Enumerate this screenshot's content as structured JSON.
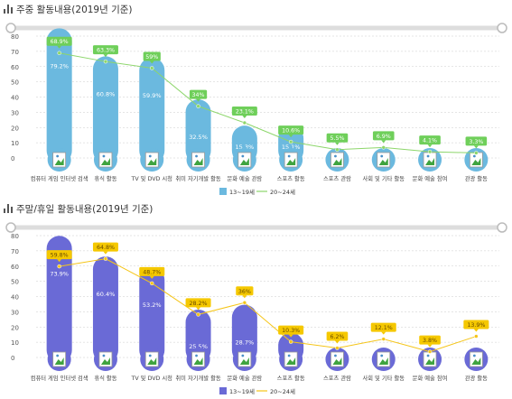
{
  "icons": {
    "title": "bar-chart-icon",
    "category": "broken-image-icon"
  },
  "colors": {
    "line": "#999999",
    "slider": "#dddddd",
    "grid": "#cccccc",
    "axisText": "#555555"
  },
  "chart_data": [
    {
      "type": "bar",
      "title": "주중 활동내용(2019년 기준)",
      "categories": [
        "컴퓨터 게임 인터넷 검색",
        "휴식 활동",
        "TV 및 DVD 시청",
        "취미 자기개발 활동",
        "문화 예술 관람",
        "스포츠 활동",
        "스포츠 관람",
        "사회 및 기타 활동",
        "문화 예술 참여",
        "관광 활동"
      ],
      "ylim": [
        0,
        80
      ],
      "yticks": [
        0,
        10,
        20,
        30,
        40,
        50,
        60,
        70,
        80
      ],
      "grid": true,
      "legend": "bottom",
      "series": [
        {
          "name": "13~19세",
          "type": "bar",
          "color": "#6bb9df",
          "labelColor": "#ffffff",
          "values": [
            79.2,
            60.8,
            59.9,
            32.5,
            15.3,
            15.1,
            0,
            0,
            0,
            0
          ],
          "labels": [
            "79.2%",
            "60.8%",
            "59.9%",
            "32.5%",
            "15.3%",
            "15.1%",
            "",
            "",
            "",
            ""
          ]
        },
        {
          "name": "20~24세",
          "type": "line",
          "color": "#8dd66b",
          "boxColor": "#6fcf5a",
          "labelColor": "#ffffff",
          "values": [
            68.9,
            63.3,
            59,
            34,
            23.1,
            10.6,
            5.5,
            6.9,
            4.1,
            3.3
          ],
          "labels": [
            "68.9%",
            "63.3%",
            "59%",
            "34%",
            "23.1%",
            "10.6%",
            "5.5%",
            "6.9%",
            "4.1%",
            "3.3%"
          ]
        }
      ]
    },
    {
      "type": "bar",
      "title": "주말/휴일 활동내용(2019년 기준)",
      "categories": [
        "컴퓨터 게임 인터넷 검색",
        "휴식 활동",
        "TV 및 DVD 시청",
        "취미 자기개발 활동",
        "문화 예술 관람",
        "스포츠 활동",
        "스포츠 관람",
        "사회 및 기타 활동",
        "문화 예술 참여",
        "관광 활동"
      ],
      "ylim": [
        0,
        80
      ],
      "yticks": [
        0,
        10,
        20,
        30,
        40,
        50,
        60,
        70,
        80
      ],
      "grid": true,
      "legend": "bottom",
      "series": [
        {
          "name": "13~19세",
          "type": "bar",
          "color": "#6a6ad6",
          "labelColor": "#ffffff",
          "values": [
            73.9,
            60.4,
            53.2,
            25.5,
            28.7,
            10.3,
            0,
            0,
            0,
            0
          ],
          "labels": [
            "73.9%",
            "60.4%",
            "53.2%",
            "25.5%",
            "28.7%",
            "",
            "",
            "",
            "",
            ""
          ]
        },
        {
          "name": "20~24세",
          "type": "line",
          "color": "#f5c518",
          "boxColor": "#f5c800",
          "labelColor": "#6a4a00",
          "values": [
            59.8,
            64.8,
            48.7,
            28.2,
            36,
            10.3,
            6.2,
            12.1,
            3.8,
            13.9
          ],
          "labels": [
            "59.8%",
            "64.8%",
            "48.7%",
            "28.2%",
            "36%",
            "10.3%",
            "6.2%",
            "12.1%",
            "3.8%",
            "13.9%"
          ]
        }
      ]
    }
  ]
}
